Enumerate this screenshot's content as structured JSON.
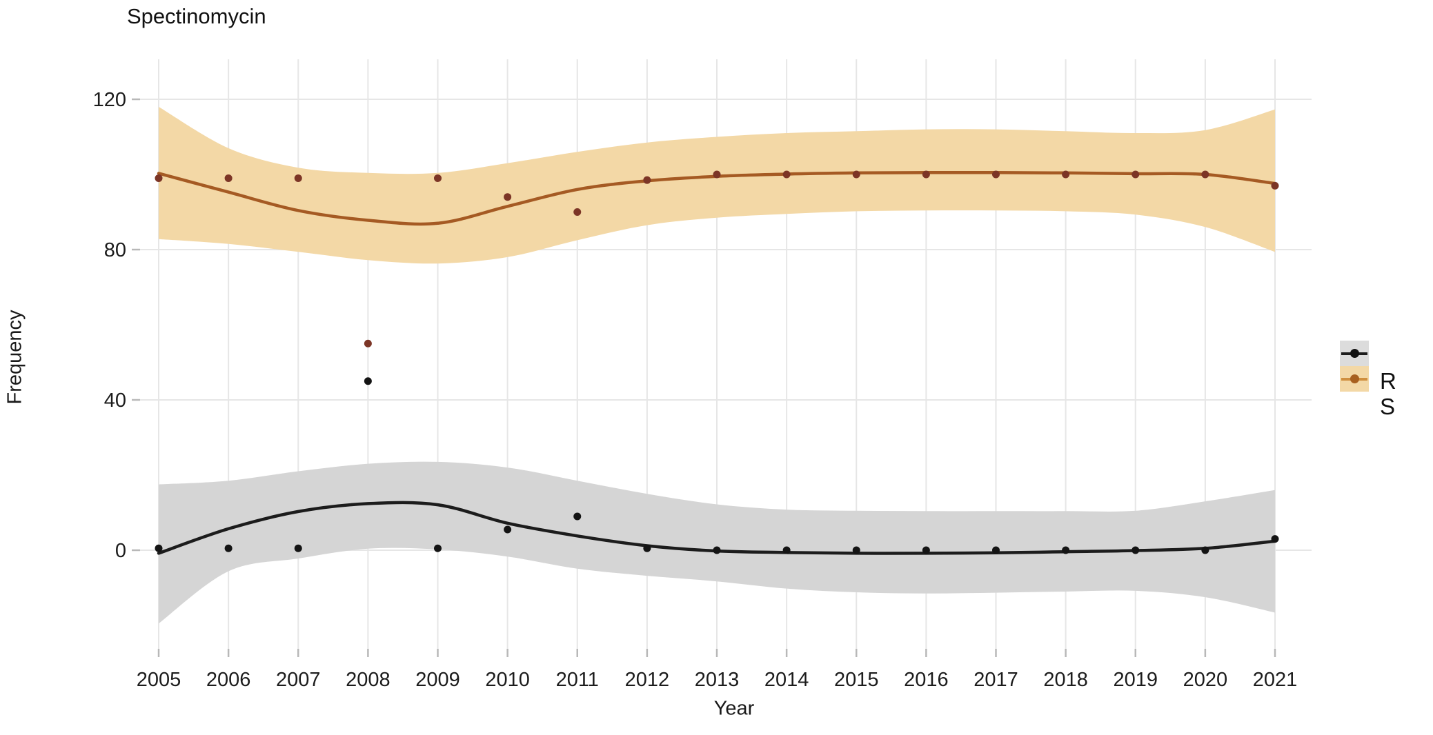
{
  "labels": {
    "title": "Spectinomycin",
    "xlabel": "Year",
    "ylabel": "Frequency",
    "legend": [
      "R",
      "S"
    ]
  },
  "chart_data": {
    "type": "line",
    "title": "Spectinomycin",
    "xlabel": "Year",
    "ylabel": "Frequency",
    "description": "Scatter points per year with loess smooth trend lines and shaded confidence bands for two categories R and S",
    "categories": [
      2005,
      2006,
      2007,
      2008,
      2009,
      2010,
      2011,
      2012,
      2013,
      2014,
      2015,
      2016,
      2017,
      2018,
      2019,
      2020,
      2021
    ],
    "x_ticks": [
      "2005",
      "2006",
      "2007",
      "2008",
      "2009",
      "2010",
      "2011",
      "2012",
      "2013",
      "2014",
      "2015",
      "2016",
      "2017",
      "2018",
      "2019",
      "2020",
      "2021"
    ],
    "y_ticks": [
      0,
      40,
      80,
      120
    ],
    "ylim": [
      -25,
      125
    ],
    "grid": true,
    "legend_position": "right",
    "colors": {
      "grid": "#e6e6e6",
      "tick": "#b8b8b8",
      "axis_text": "#1c1c1c",
      "background": "#ffffff"
    },
    "series": [
      {
        "name": "S",
        "legend_label": "S",
        "line_color": "#a55a23",
        "point_color": "#7c3526",
        "band_color": "#f3d8a6",
        "legend_key_bg": "#f3d8a6",
        "legend_line_color": "#cf8f3f",
        "legend_dot_color": "#a8601f",
        "points": [
          99,
          99,
          99,
          55,
          99,
          94,
          90,
          98.5,
          100,
          100,
          100,
          100,
          100,
          100,
          100,
          100,
          97
        ],
        "smooth_line": [
          100.3,
          95.3,
          90.4,
          87.8,
          87,
          91.5,
          96,
          98.3,
          99.5,
          100.1,
          100.4,
          100.5,
          100.5,
          100.4,
          100.2,
          100,
          97.6
        ],
        "band_upper": [
          118,
          107,
          101.8,
          100.4,
          100.4,
          103,
          106,
          108.5,
          110,
          111,
          111.5,
          112,
          112,
          111.5,
          111,
          111.8,
          117.3
        ],
        "band_lower": [
          82.8,
          81.5,
          79.4,
          77.2,
          76.3,
          78,
          82.5,
          86.5,
          88.5,
          89.5,
          90.2,
          90.4,
          90.4,
          90.2,
          89.3,
          86,
          79.4
        ]
      },
      {
        "name": "R",
        "legend_label": "R",
        "line_color": "#1c1c1c",
        "point_color": "#141414",
        "band_color": "#d5d5d5",
        "legend_key_bg": "#dcdcdc",
        "legend_line_color": "#1c1c1c",
        "legend_dot_color": "#111111",
        "points": [
          0.5,
          0.5,
          0.5,
          45,
          0.5,
          5.5,
          9,
          0.5,
          0,
          0,
          0,
          0,
          0,
          0,
          0,
          0,
          3
        ],
        "smooth_line": [
          -0.8,
          5.7,
          10.3,
          12.4,
          12.1,
          7.2,
          3.8,
          1.2,
          -0.2,
          -0.6,
          -0.8,
          -0.8,
          -0.7,
          -0.4,
          -0.1,
          0.5,
          2.4
        ],
        "band_upper": [
          17.5,
          18.5,
          21,
          23,
          23.5,
          22,
          18.5,
          15,
          12.2,
          10.8,
          10.5,
          10.4,
          10.4,
          10.4,
          10.5,
          13,
          16
        ],
        "band_lower": [
          -19.5,
          -5.6,
          -2.2,
          0.4,
          0.2,
          -1.7,
          -4.9,
          -6.8,
          -8.3,
          -10.2,
          -11.2,
          -11.5,
          -11.3,
          -11,
          -10.8,
          -12.5,
          -16.6
        ]
      }
    ]
  }
}
